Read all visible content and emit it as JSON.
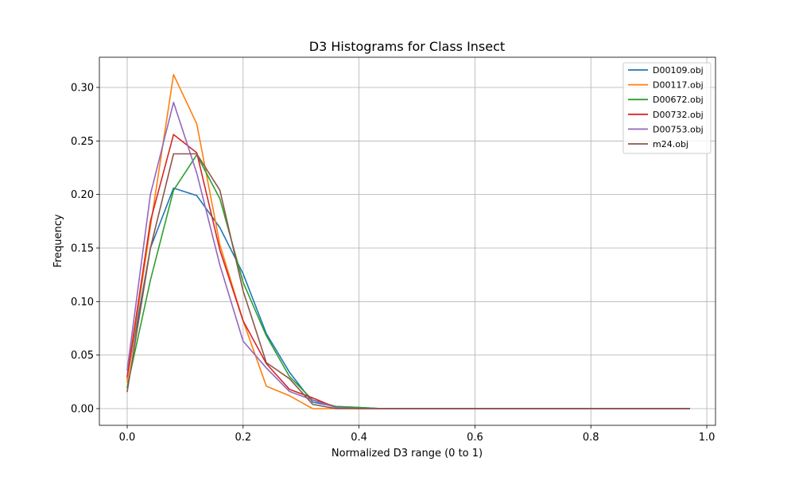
{
  "chart_data": {
    "type": "line",
    "title": "D3 Histograms for Class Insect",
    "xlabel": "Normalized D3 range (0 to 1)",
    "ylabel": "Frequency",
    "xlim": [
      -0.048,
      1.015
    ],
    "ylim": [
      -0.0156,
      0.3282
    ],
    "xticks": [
      0.0,
      0.2,
      0.4,
      0.6,
      0.8,
      1.0
    ],
    "xtick_labels": [
      "0.0",
      "0.2",
      "0.4",
      "0.6",
      "0.8",
      "1.0"
    ],
    "yticks": [
      0.0,
      0.05,
      0.1,
      0.15,
      0.2,
      0.25,
      0.3
    ],
    "ytick_labels": [
      "0.00",
      "0.05",
      "0.10",
      "0.15",
      "0.20",
      "0.25",
      "0.30"
    ],
    "grid": true,
    "legend_position": "top-right",
    "x": [
      0.0,
      0.04,
      0.08,
      0.12,
      0.16,
      0.2,
      0.24,
      0.28,
      0.32,
      0.36,
      0.4,
      0.44,
      0.48,
      0.52,
      0.56,
      0.6,
      0.64,
      0.68,
      0.72,
      0.76,
      0.8,
      0.84,
      0.88,
      0.92,
      0.97
    ],
    "series": [
      {
        "name": "D00109.obj",
        "color": "#1f77b4",
        "values": [
          0.028,
          0.15,
          0.206,
          0.199,
          0.169,
          0.126,
          0.07,
          0.034,
          0.006,
          0.002,
          0.001,
          0.0,
          0.0,
          0.0,
          0.0,
          0.0,
          0.0,
          0.0,
          0.0,
          0.0,
          0.0,
          0.0,
          0.0,
          0.0,
          0.0
        ]
      },
      {
        "name": "D00117.obj",
        "color": "#ff7f0e",
        "values": [
          0.025,
          0.17,
          0.312,
          0.266,
          0.153,
          0.082,
          0.021,
          0.012,
          0.0,
          0.0,
          0.0,
          0.0,
          0.0,
          0.0,
          0.0,
          0.0,
          0.0,
          0.0,
          0.0,
          0.0,
          0.0,
          0.0,
          0.0,
          0.0,
          0.0
        ]
      },
      {
        "name": "D00672.obj",
        "color": "#2ca02c",
        "values": [
          0.02,
          0.12,
          0.204,
          0.237,
          0.196,
          0.118,
          0.068,
          0.03,
          0.008,
          0.002,
          0.001,
          0.0,
          0.0,
          0.0,
          0.0,
          0.0,
          0.0,
          0.0,
          0.0,
          0.0,
          0.0,
          0.0,
          0.0,
          0.0,
          0.0
        ]
      },
      {
        "name": "D00732.obj",
        "color": "#d62728",
        "values": [
          0.03,
          0.175,
          0.256,
          0.239,
          0.148,
          0.082,
          0.042,
          0.018,
          0.01,
          0.001,
          0.0,
          0.0,
          0.0,
          0.0,
          0.0,
          0.0,
          0.0,
          0.0,
          0.0,
          0.0,
          0.0,
          0.0,
          0.0,
          0.0,
          0.0
        ]
      },
      {
        "name": "D00753.obj",
        "color": "#9467bd",
        "values": [
          0.036,
          0.2,
          0.286,
          0.22,
          0.134,
          0.063,
          0.038,
          0.016,
          0.008,
          0.001,
          0.0,
          0.0,
          0.0,
          0.0,
          0.0,
          0.0,
          0.0,
          0.0,
          0.0,
          0.0,
          0.0,
          0.0,
          0.0,
          0.0,
          0.0
        ]
      },
      {
        "name": "m24.obj",
        "color": "#8c564b",
        "values": [
          0.016,
          0.15,
          0.238,
          0.238,
          0.204,
          0.11,
          0.043,
          0.028,
          0.004,
          0.0,
          0.0,
          0.0,
          0.0,
          0.0,
          0.0,
          0.0,
          0.0,
          0.0,
          0.0,
          0.0,
          0.0,
          0.0,
          0.0,
          0.0,
          0.0
        ]
      }
    ]
  }
}
